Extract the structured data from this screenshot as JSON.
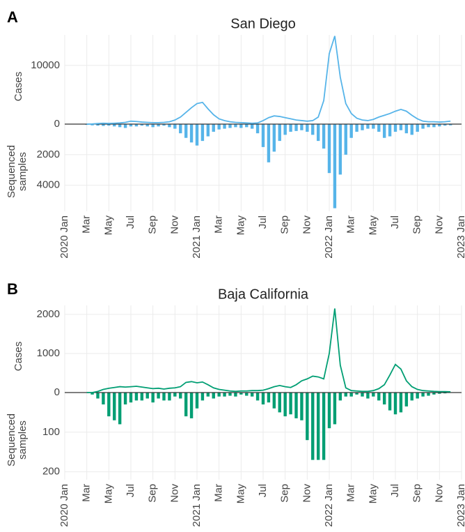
{
  "chart_data": [
    {
      "type": "combo",
      "panel_label": "A",
      "title": "San Diego",
      "y_label": "Cases",
      "y2_label": "Sequenced samples",
      "xlim": [
        0,
        36
      ],
      "xticks": [
        {
          "value": 0,
          "label": "2020 Jan"
        },
        {
          "value": 2,
          "label": "Mar"
        },
        {
          "value": 4,
          "label": "May"
        },
        {
          "value": 6,
          "label": "Jul"
        },
        {
          "value": 8,
          "label": "Sep"
        },
        {
          "value": 10,
          "label": "Nov"
        },
        {
          "value": 12,
          "label": "2021 Jan"
        },
        {
          "value": 14,
          "label": "Mar"
        },
        {
          "value": 16,
          "label": "May"
        },
        {
          "value": 18,
          "label": "Jul"
        },
        {
          "value": 20,
          "label": "Sep"
        },
        {
          "value": 22,
          "label": "Nov"
        },
        {
          "value": 24,
          "label": "2022 Jan"
        },
        {
          "value": 26,
          "label": "Mar"
        },
        {
          "value": 28,
          "label": "May"
        },
        {
          "value": 30,
          "label": "Jul"
        },
        {
          "value": 32,
          "label": "Sep"
        },
        {
          "value": 34,
          "label": "Nov"
        },
        {
          "value": 36,
          "label": "2023 Jan"
        }
      ],
      "ylim": [
        0,
        15200
      ],
      "yticks": [
        0,
        10000
      ],
      "y2lim": [
        0,
        5700
      ],
      "y2ticks": [
        2000,
        4000
      ],
      "grid": true,
      "x": [
        2,
        2.5,
        3,
        3.5,
        4,
        4.5,
        5,
        5.5,
        6,
        6.5,
        7,
        7.5,
        8,
        8.5,
        9,
        9.5,
        10,
        10.5,
        11,
        11.5,
        12,
        12.5,
        13,
        13.5,
        14,
        14.5,
        15,
        15.5,
        16,
        16.5,
        17,
        17.5,
        18,
        18.5,
        19,
        19.5,
        20,
        20.5,
        21,
        21.5,
        22,
        22.5,
        23,
        23.5,
        24,
        24.5,
        25,
        25.5,
        26,
        26.5,
        27,
        27.5,
        28,
        28.5,
        29,
        29.5,
        30,
        30.5,
        31,
        31.5,
        32,
        32.5,
        33,
        33.5,
        34,
        34.5,
        35
      ],
      "series": [
        {
          "type": "line",
          "axis": "y",
          "color": "#56b4e9",
          "values": [
            0,
            20,
            100,
            150,
            120,
            150,
            200,
            300,
            500,
            450,
            350,
            300,
            250,
            250,
            300,
            400,
            700,
            1200,
            2000,
            2800,
            3500,
            3700,
            2600,
            1600,
            900,
            600,
            400,
            300,
            250,
            200,
            150,
            200,
            600,
            1100,
            1400,
            1300,
            1100,
            900,
            700,
            600,
            500,
            600,
            1200,
            4000,
            12000,
            15000,
            8000,
            3500,
            1800,
            1000,
            700,
            600,
            800,
            1200,
            1500,
            1800,
            2200,
            2500,
            2200,
            1500,
            900,
            500,
            400,
            400,
            350,
            400,
            500
          ]
        },
        {
          "type": "bar",
          "axis": "y2",
          "color": "#56b4e9",
          "values": [
            50,
            80,
            100,
            120,
            100,
            150,
            200,
            250,
            150,
            150,
            100,
            150,
            200,
            150,
            100,
            200,
            300,
            600,
            900,
            1200,
            1400,
            1100,
            800,
            500,
            350,
            300,
            250,
            200,
            250,
            200,
            300,
            600,
            1500,
            2500,
            1800,
            1100,
            700,
            500,
            450,
            400,
            500,
            700,
            1100,
            1600,
            3200,
            5500,
            3300,
            2000,
            900,
            500,
            400,
            300,
            300,
            500,
            900,
            800,
            500,
            400,
            600,
            700,
            500,
            300,
            200,
            200,
            150,
            100,
            80
          ]
        }
      ]
    },
    {
      "type": "combo",
      "panel_label": "B",
      "title": "Baja California",
      "y_label": "Cases",
      "y2_label": "Sequenced samples",
      "xlim": [
        0,
        36
      ],
      "xticks": [
        {
          "value": 0,
          "label": "2020 Jan"
        },
        {
          "value": 2,
          "label": "Mar"
        },
        {
          "value": 4,
          "label": "May"
        },
        {
          "value": 6,
          "label": "Jul"
        },
        {
          "value": 8,
          "label": "Sep"
        },
        {
          "value": 10,
          "label": "Nov"
        },
        {
          "value": 12,
          "label": "2021 Jan"
        },
        {
          "value": 14,
          "label": "Mar"
        },
        {
          "value": 16,
          "label": "May"
        },
        {
          "value": 18,
          "label": "Jul"
        },
        {
          "value": 20,
          "label": "Sep"
        },
        {
          "value": 22,
          "label": "Nov"
        },
        {
          "value": 24,
          "label": "2022 Jan"
        },
        {
          "value": 26,
          "label": "Mar"
        },
        {
          "value": 28,
          "label": "May"
        },
        {
          "value": 30,
          "label": "Jul"
        },
        {
          "value": 32,
          "label": "Sep"
        },
        {
          "value": 34,
          "label": "Nov"
        },
        {
          "value": 36,
          "label": "2023 Jan"
        }
      ],
      "ylim": [
        0,
        2230
      ],
      "yticks": [
        0,
        1000,
        2000
      ],
      "y2lim": [
        0,
        220
      ],
      "y2ticks": [
        100,
        200
      ],
      "grid": true,
      "x": [
        2,
        2.5,
        3,
        3.5,
        4,
        4.5,
        5,
        5.5,
        6,
        6.5,
        7,
        7.5,
        8,
        8.5,
        9,
        9.5,
        10,
        10.5,
        11,
        11.5,
        12,
        12.5,
        13,
        13.5,
        14,
        14.5,
        15,
        15.5,
        16,
        16.5,
        17,
        17.5,
        18,
        18.5,
        19,
        19.5,
        20,
        20.5,
        21,
        21.5,
        22,
        22.5,
        23,
        23.5,
        24,
        24.5,
        25,
        25.5,
        26,
        26.5,
        27,
        27.5,
        28,
        28.5,
        29,
        29.5,
        30,
        30.5,
        31,
        31.5,
        32,
        32.5,
        33,
        33.5,
        34,
        34.5,
        35
      ],
      "series": [
        {
          "type": "line",
          "axis": "y",
          "color": "#009e73",
          "values": [
            0,
            0,
            30,
            80,
            110,
            130,
            150,
            140,
            150,
            160,
            140,
            120,
            100,
            110,
            90,
            110,
            120,
            150,
            260,
            280,
            250,
            270,
            200,
            120,
            80,
            60,
            40,
            30,
            40,
            40,
            50,
            50,
            60,
            100,
            150,
            180,
            150,
            130,
            200,
            300,
            350,
            420,
            400,
            350,
            1000,
            2150,
            700,
            120,
            50,
            40,
            30,
            30,
            50,
            100,
            200,
            450,
            720,
            600,
            300,
            150,
            80,
            50,
            40,
            30,
            25,
            25,
            20
          ]
        },
        {
          "type": "bar",
          "axis": "y2",
          "color": "#009e73",
          "values": [
            0,
            5,
            15,
            30,
            60,
            70,
            80,
            30,
            25,
            20,
            20,
            15,
            25,
            15,
            20,
            20,
            10,
            15,
            60,
            65,
            40,
            20,
            10,
            15,
            10,
            10,
            8,
            10,
            5,
            8,
            10,
            20,
            30,
            25,
            40,
            50,
            60,
            55,
            65,
            70,
            120,
            170,
            170,
            170,
            90,
            80,
            20,
            10,
            10,
            5,
            10,
            15,
            10,
            20,
            30,
            45,
            55,
            50,
            35,
            20,
            15,
            10,
            8,
            5,
            3,
            2,
            0
          ]
        }
      ]
    }
  ]
}
